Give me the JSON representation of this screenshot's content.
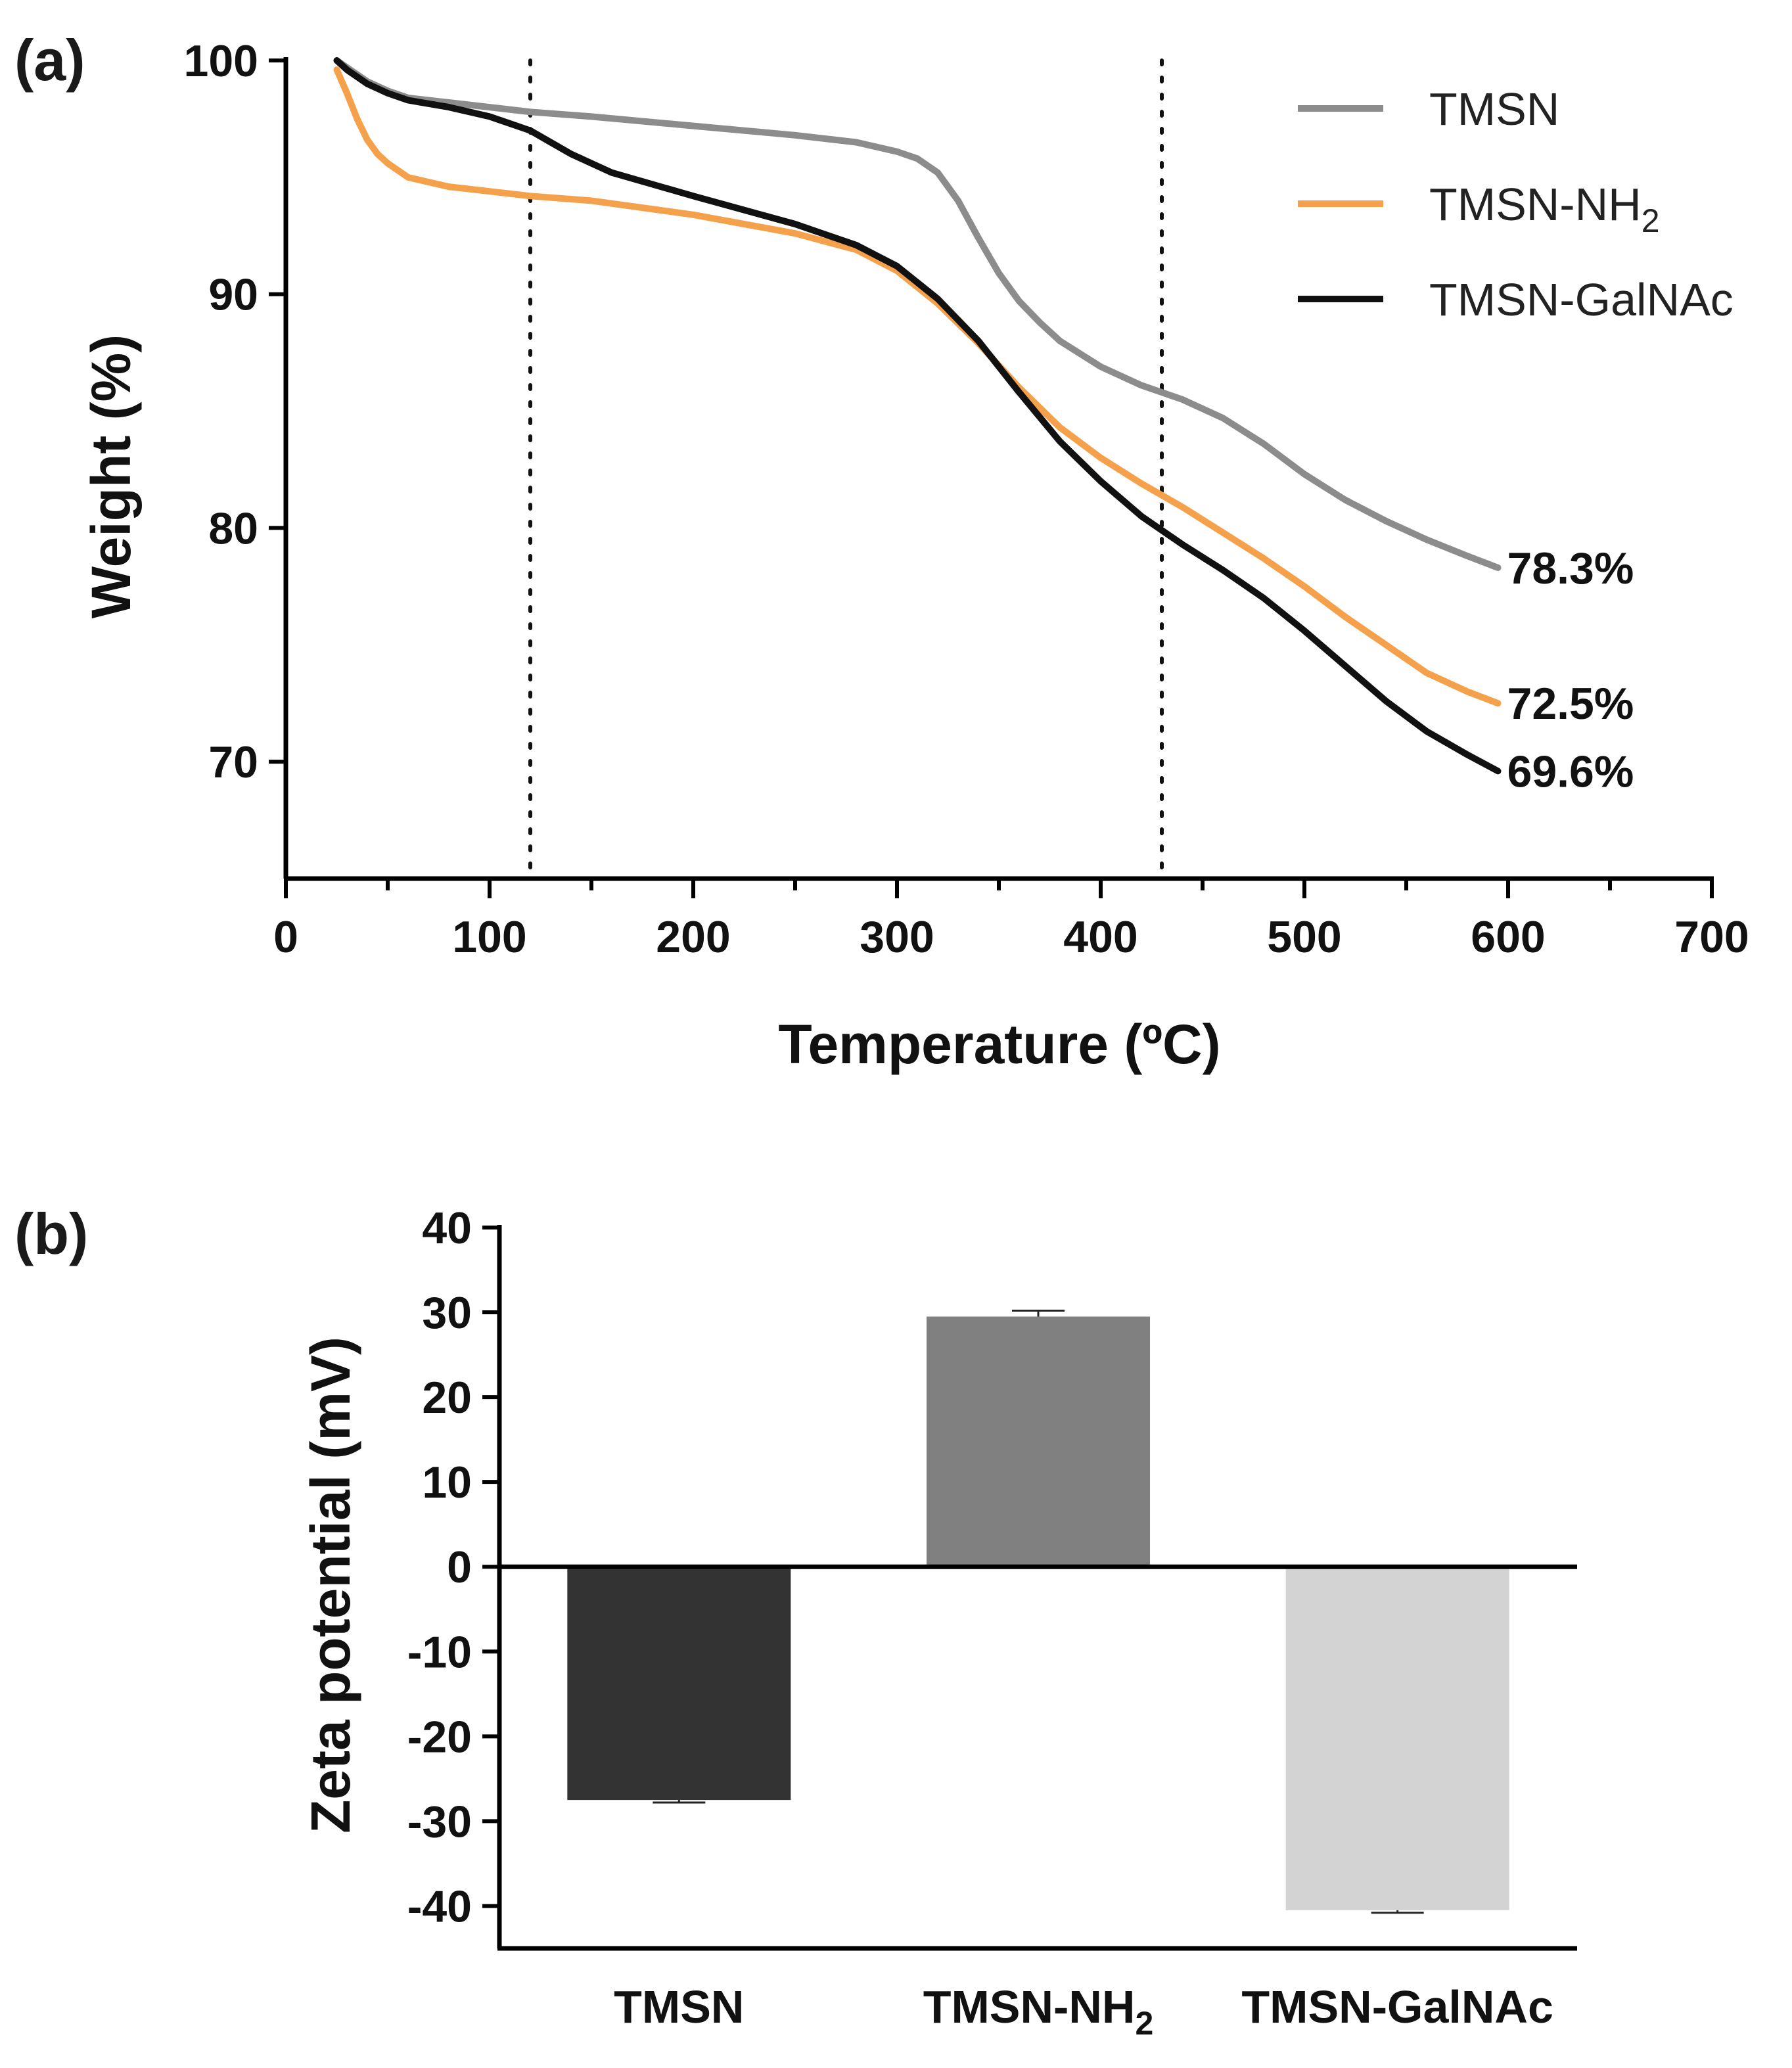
{
  "chart_data": [
    {
      "type": "line",
      "panel_label": "(a)",
      "xlabel": "Temperature (ºC)",
      "ylabel": "Weight (%)",
      "xlim": [
        0,
        700
      ],
      "ylim": [
        65,
        100
      ],
      "xticks": [
        0,
        100,
        200,
        300,
        400,
        500,
        600,
        700
      ],
      "xtick_labels": [
        "0",
        "100",
        "200",
        "300",
        "400",
        "500",
        "600",
        "700"
      ],
      "yticks": [
        70,
        80,
        90,
        100
      ],
      "ytick_labels": [
        "70",
        "80",
        "90",
        "100"
      ],
      "vertical_reference_lines": [
        120,
        430
      ],
      "legend_position": "top-right",
      "series": [
        {
          "name": "TMSN",
          "sub": "",
          "color": "#8c8c8c",
          "end_label": "78.3%",
          "x": [
            25,
            30,
            40,
            50,
            60,
            80,
            100,
            120,
            150,
            200,
            250,
            280,
            300,
            310,
            320,
            330,
            340,
            350,
            360,
            370,
            380,
            400,
            420,
            440,
            460,
            480,
            500,
            520,
            540,
            560,
            580,
            595
          ],
          "y": [
            100,
            99.7,
            99.1,
            98.7,
            98.4,
            98.2,
            98.0,
            97.8,
            97.6,
            97.2,
            96.8,
            96.5,
            96.1,
            95.8,
            95.2,
            94.0,
            92.4,
            90.9,
            89.7,
            88.8,
            88.0,
            86.9,
            86.1,
            85.5,
            84.7,
            83.6,
            82.3,
            81.2,
            80.3,
            79.5,
            78.8,
            78.3
          ]
        },
        {
          "name": "TMSN-NH",
          "sub": "2",
          "color": "#f5a04b",
          "end_label": "72.5%",
          "x": [
            25,
            30,
            35,
            40,
            45,
            50,
            60,
            80,
            100,
            120,
            150,
            200,
            250,
            280,
            300,
            320,
            340,
            360,
            380,
            400,
            420,
            440,
            460,
            480,
            500,
            520,
            540,
            560,
            580,
            595
          ],
          "y": [
            99.6,
            98.6,
            97.5,
            96.6,
            96.0,
            95.6,
            95.0,
            94.6,
            94.4,
            94.2,
            94.0,
            93.4,
            92.6,
            91.9,
            91.0,
            89.6,
            87.9,
            86.0,
            84.3,
            83.0,
            81.9,
            80.9,
            79.8,
            78.7,
            77.5,
            76.2,
            75.0,
            73.8,
            73.0,
            72.5
          ]
        },
        {
          "name": "TMSN-GalNAc",
          "sub": "",
          "color": "#111111",
          "end_label": "69.6%",
          "x": [
            25,
            30,
            40,
            50,
            60,
            80,
            100,
            110,
            120,
            130,
            140,
            160,
            180,
            200,
            250,
            280,
            300,
            320,
            340,
            360,
            380,
            400,
            420,
            440,
            460,
            480,
            500,
            520,
            540,
            560,
            580,
            595
          ],
          "y": [
            100,
            99.6,
            99.0,
            98.6,
            98.3,
            98.0,
            97.6,
            97.3,
            97.0,
            96.5,
            96.0,
            95.2,
            94.7,
            94.2,
            93.0,
            92.1,
            91.2,
            89.8,
            88.0,
            85.8,
            83.7,
            82.0,
            80.5,
            79.3,
            78.2,
            77.0,
            75.6,
            74.1,
            72.6,
            71.3,
            70.3,
            69.6
          ]
        }
      ]
    },
    {
      "type": "bar",
      "panel_label": "(b)",
      "ylabel": "Zeta potential (mV)",
      "xlabel": "",
      "ylim": [
        -45,
        40
      ],
      "yticks": [
        -40,
        -30,
        -20,
        -10,
        0,
        10,
        20,
        30,
        40
      ],
      "ytick_labels": [
        "-40",
        "-30",
        "-20",
        "-10",
        "0",
        "10",
        "20",
        "30",
        "40"
      ],
      "categories": [
        {
          "name": "TMSN",
          "sub": ""
        },
        {
          "name": "TMSN-NH",
          "sub": "2"
        },
        {
          "name": "TMSN-GalNAc",
          "sub": ""
        }
      ],
      "values": [
        -27.5,
        29.5,
        -40.5
      ],
      "errors": [
        0.3,
        0.7,
        0.3
      ],
      "colors": [
        "#333333",
        "#808080",
        "#d3d3d3"
      ]
    }
  ]
}
